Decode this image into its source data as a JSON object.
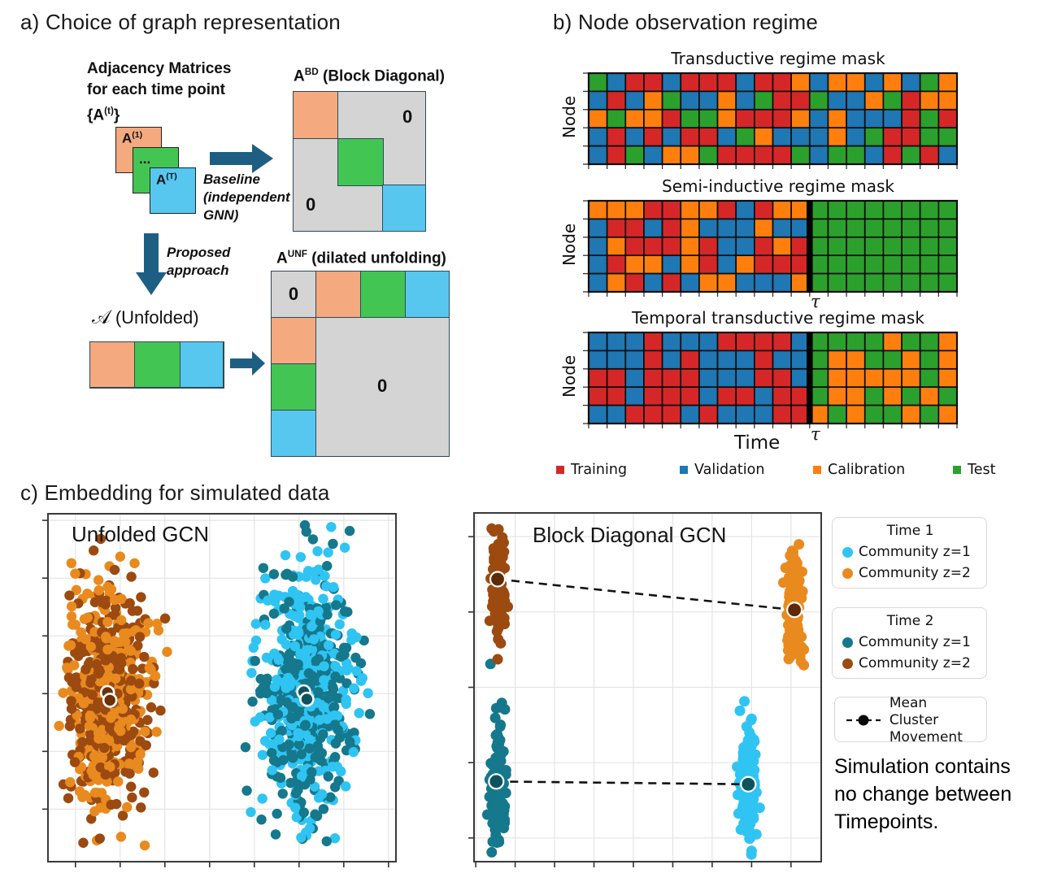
{
  "figure": {
    "panel_a": {
      "title": "a) Choice of graph representation",
      "adjacency_caption": {
        "line1": "Adjacency Matrices",
        "line2": "for each time point",
        "line3_pre": "{A",
        "line3_sup": "(t)",
        "line3_post": "}"
      },
      "stack": {
        "a1_base": "A",
        "a1_sup": "(1)",
        "dots": "...",
        "at_base": "A",
        "at_sup": "(T)"
      },
      "baseline_caption": {
        "line1": "Baseline",
        "line2": "(independent",
        "line3": "GNN)"
      },
      "proposed_caption": {
        "line1": "Proposed",
        "line2": "approach"
      },
      "abd_title": {
        "base": "A",
        "sup": "BD",
        "rest": " (Block Diagonal)"
      },
      "unfolded_label": {
        "script_a": "𝒜",
        "rest": " (Unfolded)"
      },
      "aunf_title": {
        "base": "A",
        "sup": "UNF",
        "rest": " (dilated unfolding)"
      },
      "zero": "0",
      "colors": {
        "peach": "#f4a97e",
        "green": "#43c553",
        "blue": "#57c7f0",
        "gray": "#d4d4d4",
        "arrow": "#1d5f83"
      }
    },
    "panel_b": {
      "title": "b) Node observation regime",
      "node_axis_label": "Node",
      "time_axis_label": "Time",
      "tau": "τ",
      "color_map": {
        "R": "#d62728",
        "B": "#1f77b4",
        "O": "#ff7f0e",
        "G": "#2ca02c"
      },
      "masks": [
        {
          "title": "Transductive regime mask",
          "divider_after": null,
          "rows": [
            "GBRRBRRRBRROBOOBOBGO",
            "BRBOGBBOBGRRGBBOGROO",
            "OGOORGGORRROBOBBBRGR",
            "BRBRBRRBGOBBBOBGRRGG",
            "BRGBOOGRRRRGBGGBRGRB"
          ]
        },
        {
          "title": "Semi-inductive regime mask",
          "divider_after": 12,
          "rows": [
            "OOORROORBROOGGGGGGGG",
            "BRRBROBBBOBBGGGGGGGG",
            "BORRRORBBRORGGGGGGGG",
            "BROOBORBORRRGGGGGGGG",
            "BORBRBOOBBBOGGGGGGGG"
          ]
        },
        {
          "title": "Temporal transductive regime mask",
          "divider_after": 12,
          "rows": [
            "BBBRBBBRRRRBGGGGOGGO",
            "BBBRBRBBBRBBGOOGGOGO",
            "RRBRRRBBBRRBGOOOOOGO",
            "RRBRRRBRRBRRGOOGOGOG",
            "BBRRRBRBBBRROGOGGOGO"
          ]
        }
      ],
      "legend": [
        {
          "label": "Training",
          "color": "#d62728"
        },
        {
          "label": "Validation",
          "color": "#1f77b4"
        },
        {
          "label": "Calibration",
          "color": "#ff7f0e"
        },
        {
          "label": "Test",
          "color": "#2ca02c"
        }
      ]
    },
    "panel_c": {
      "title": "c) Embedding for simulated data",
      "legend_time1": {
        "header": "Time 1",
        "items": [
          {
            "label": "Community z=1",
            "color": "#2fc4f2"
          },
          {
            "label": "Community z=2",
            "color": "#e98a1f"
          }
        ]
      },
      "legend_time2": {
        "header": "Time 2",
        "items": [
          {
            "label": "Community z=1",
            "color": "#15788c"
          },
          {
            "label": "Community z=2",
            "color": "#9c4a10"
          }
        ]
      },
      "legend_movement": {
        "line1": "Mean Cluster",
        "line2": "Movement"
      },
      "annotation": [
        "Simulation contains",
        "no change between",
        "Timepoints."
      ]
    }
  },
  "chart_data": [
    {
      "type": "scatter",
      "title": "Unfolded GCN",
      "xlabel": "",
      "ylabel": "",
      "tick_labels_visible": false,
      "grid": true,
      "clusters": [
        {
          "legend": "Time 1 Community z=2",
          "color": "#e98a1f",
          "center_frac": [
            0.175,
            0.53
          ],
          "std_frac": [
            0.055,
            0.155
          ],
          "n": 320
        },
        {
          "legend": "Time 2 Community z=2",
          "color": "#9c4a10",
          "center_frac": [
            0.172,
            0.53
          ],
          "std_frac": [
            0.055,
            0.155
          ],
          "n": 320
        },
        {
          "legend": "Time 1 Community z=1",
          "color": "#2fc4f2",
          "center_frac": [
            0.74,
            0.52
          ],
          "std_frac": [
            0.065,
            0.175
          ],
          "n": 320
        },
        {
          "legend": "Time 2 Community z=1",
          "color": "#15788c",
          "center_frac": [
            0.745,
            0.52
          ],
          "std_frac": [
            0.065,
            0.175
          ],
          "n": 320
        }
      ],
      "mean_markers": [
        {
          "frac": [
            0.171,
            0.514
          ],
          "fill": "#6e3005"
        },
        {
          "frac": [
            0.178,
            0.536
          ],
          "fill": "#6e3005"
        },
        {
          "frac": [
            0.735,
            0.512
          ],
          "fill": "#0d535f"
        },
        {
          "frac": [
            0.744,
            0.533
          ],
          "fill": "#0d535f"
        }
      ],
      "note": "Time 1 and Time 2 cluster means coincide"
    },
    {
      "type": "scatter",
      "title": "Block Diagonal GCN",
      "xlabel": "",
      "ylabel": "",
      "tick_labels_visible": false,
      "grid": true,
      "clusters": [
        {
          "legend": "Time 2 Community z=2",
          "color": "#9c4a10",
          "center_frac": [
            0.07,
            0.19
          ],
          "std_frac": [
            0.01,
            0.075
          ],
          "n": 140
        },
        {
          "legend": "Time 1 Community z=2",
          "color": "#e98a1f",
          "center_frac": [
            0.923,
            0.28
          ],
          "std_frac": [
            0.012,
            0.072
          ],
          "n": 140
        },
        {
          "legend": "Time 2 Community z=1",
          "color": "#15788c",
          "center_frac": [
            0.066,
            0.775
          ],
          "std_frac": [
            0.01,
            0.085
          ],
          "n": 140
        },
        {
          "legend": "Time 1 Community z=1",
          "color": "#2fc4f2",
          "center_frac": [
            0.79,
            0.765
          ],
          "std_frac": [
            0.013,
            0.085
          ],
          "n": 140
        }
      ],
      "movements": [
        {
          "from_frac": [
            0.068,
            0.19
          ],
          "to_frac": [
            0.923,
            0.278
          ],
          "marker_fill": "#5e2a04"
        },
        {
          "from_frac": [
            0.064,
            0.77
          ],
          "to_frac": [
            0.79,
            0.778
          ],
          "marker_fill": "#0d535f"
        }
      ]
    }
  ]
}
